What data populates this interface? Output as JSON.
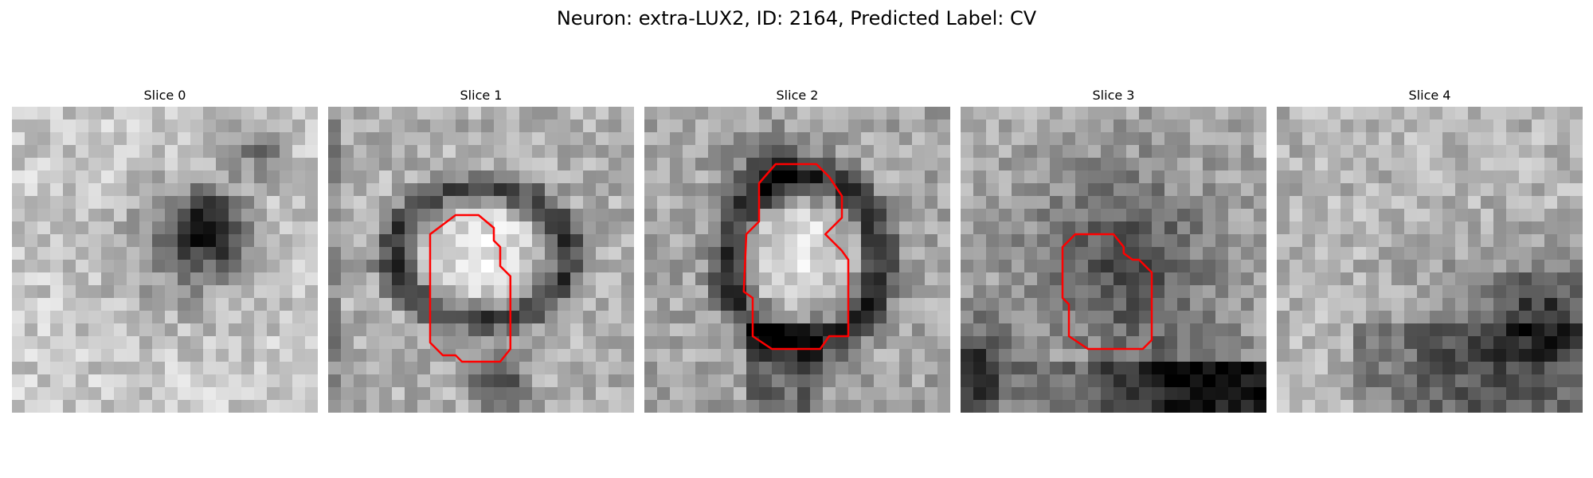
{
  "figure": {
    "title": "Neuron: extra-LUX2, ID: 2164, Predicted Label: CV"
  },
  "panels": [
    {
      "label": "Slice 0",
      "has_outline": false
    },
    {
      "label": "Slice 1",
      "has_outline": true
    },
    {
      "label": "Slice 2",
      "has_outline": true
    },
    {
      "label": "Slice 3",
      "has_outline": true
    },
    {
      "label": "Slice 4",
      "has_outline": false
    }
  ],
  "colors": {
    "outline": "#ff0000",
    "background": "#ffffff"
  }
}
